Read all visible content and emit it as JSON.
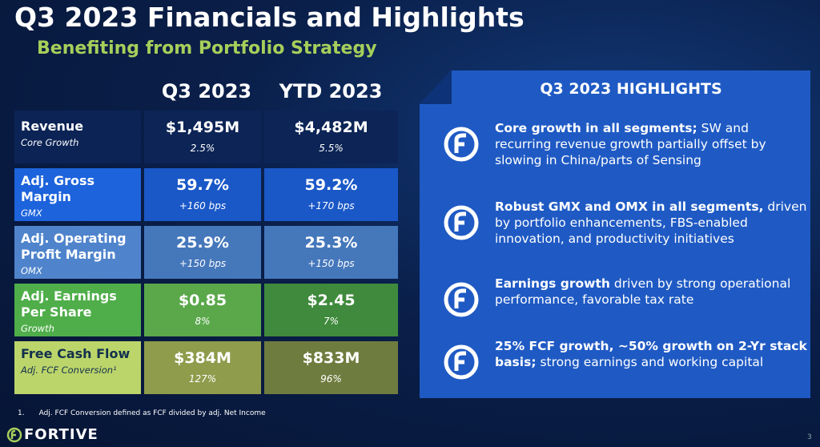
{
  "header": {
    "title": "Q3 2023 Financials and Highlights",
    "subtitle": "Benefiting from Portfolio Strategy"
  },
  "table": {
    "columns": [
      "Q3 2023",
      "YTD 2023"
    ],
    "rows": [
      {
        "label": "Revenue",
        "sublabel": "Core Growth",
        "q3": "$1,495M",
        "q3_sub": "2.5%",
        "ytd": "$4,482M",
        "ytd_sub": "5.5%"
      },
      {
        "label": "Adj. Gross Margin",
        "sublabel": "GMX",
        "q3": "59.7%",
        "q3_sub": "+160 bps",
        "ytd": "59.2%",
        "ytd_sub": "+170 bps"
      },
      {
        "label": "Adj. Operating Profit Margin",
        "sublabel": "OMX",
        "q3": "25.9%",
        "q3_sub": "+150 bps",
        "ytd": "25.3%",
        "ytd_sub": "+150 bps"
      },
      {
        "label": "Adj. Earnings Per Share",
        "sublabel": "Growth",
        "q3": "$0.85",
        "q3_sub": "8%",
        "ytd": "$2.45",
        "ytd_sub": "7%"
      },
      {
        "label": "Free Cash Flow",
        "sublabel": "Adj. FCF Conversion¹",
        "q3": "$384M",
        "q3_sub": "127%",
        "ytd": "$833M",
        "ytd_sub": "96%"
      }
    ]
  },
  "highlights": {
    "title": "Q3 2023 HIGHLIGHTS",
    "items": [
      {
        "bold": "Core growth in all segments;",
        "text": "SW and recurring revenue growth partially offset by slowing in China/parts of Sensing"
      },
      {
        "bold": "Robust GMX and OMX in all segments,",
        "text": "driven by portfolio enhancements, FBS-enabled innovation, and productivity initiatives"
      },
      {
        "bold": "Earnings growth",
        "text": "driven by strong operational performance, favorable tax rate"
      },
      {
        "bold": "25% FCF growth, ~50% growth on 2-Yr stack basis;",
        "text": "strong earnings and working capital"
      }
    ]
  },
  "footnote": {
    "number": "1.",
    "text": "Adj. FCF Conversion defined as FCF divided by adj. Net Income"
  },
  "footer": {
    "logo": "FORTIVE",
    "page": "3"
  }
}
